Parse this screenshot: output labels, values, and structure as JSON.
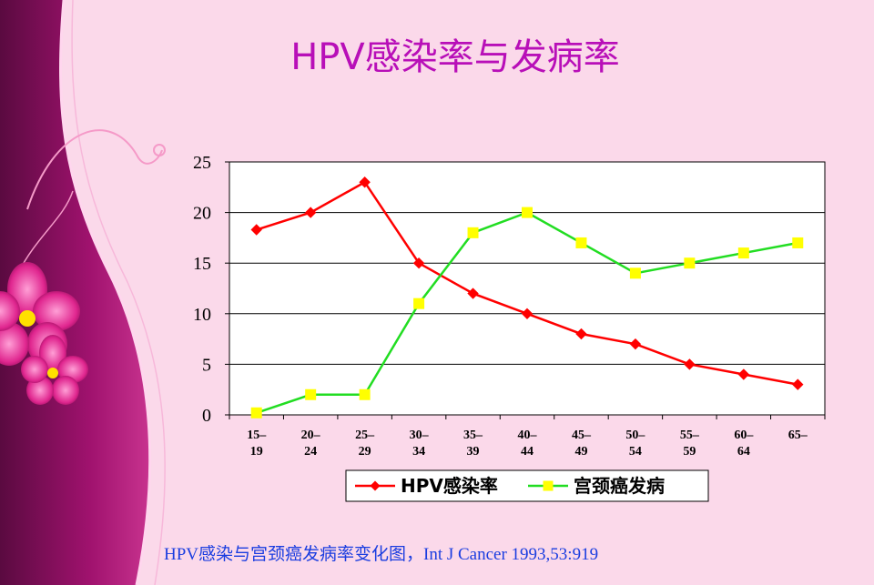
{
  "slide": {
    "title": "HPV感染率与发病率",
    "caption": "HPV感染与宫颈癌发病率变化图，Int J Cancer 1993,53:919"
  },
  "colors": {
    "background": "#fbd9ea",
    "title": "#b80fb8",
    "caption": "#1a3de0",
    "hpv_series": "#ff0000",
    "cancer_series_line": "#22dd22",
    "cancer_series_marker": "#ffff00"
  },
  "chart_data": {
    "type": "line",
    "categories": [
      "15–19",
      "20–24",
      "25–29",
      "30–34",
      "35–39",
      "40–44",
      "45–49",
      "50–54",
      "55–59",
      "60–64",
      "65–"
    ],
    "category_lines": [
      [
        "15–",
        "19"
      ],
      [
        "20–",
        "24"
      ],
      [
        "25–",
        "29"
      ],
      [
        "30–",
        "34"
      ],
      [
        "35–",
        "39"
      ],
      [
        "40–",
        "44"
      ],
      [
        "45–",
        "49"
      ],
      [
        "50–",
        "54"
      ],
      [
        "55–",
        "59"
      ],
      [
        "60–",
        "64"
      ],
      [
        "65–",
        ""
      ]
    ],
    "series": [
      {
        "name": "HPV感染率",
        "values": [
          18.3,
          20,
          23,
          15,
          12,
          10,
          8,
          7,
          5,
          4,
          3
        ],
        "color": "#ff0000",
        "marker": "diamond"
      },
      {
        "name": "宫颈癌发病",
        "values": [
          0.2,
          2,
          2,
          11,
          18,
          20,
          17,
          14,
          15,
          16,
          17
        ],
        "color": "#22dd22",
        "marker": "square",
        "marker_color": "#ffff00"
      }
    ],
    "ylim": [
      0,
      25
    ],
    "yticks": [
      0,
      5,
      10,
      15,
      20,
      25
    ],
    "grid": true,
    "legend_position": "bottom",
    "xlabel": "",
    "ylabel": ""
  }
}
